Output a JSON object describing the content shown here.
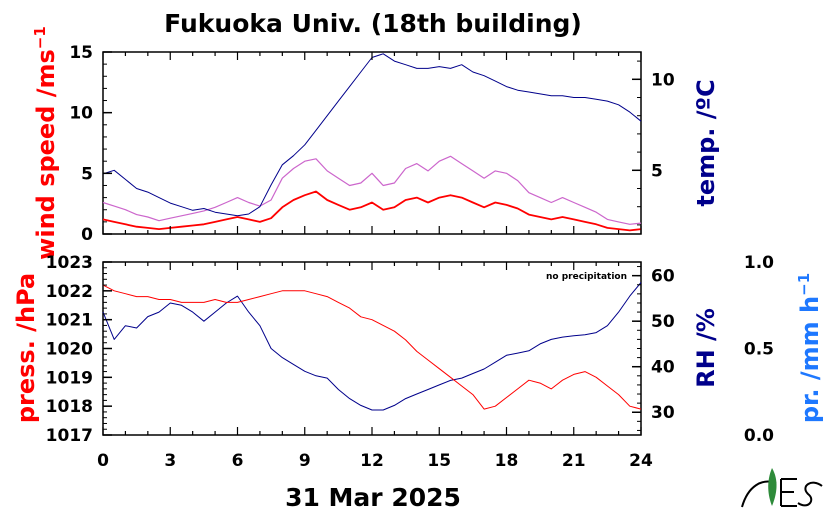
{
  "chart_data": {
    "type": "line",
    "title": "Fukuoka Univ. (18th building)",
    "date": "31 Mar 2025",
    "x_ticks": [
      "0",
      "3",
      "6",
      "9",
      "12",
      "15",
      "18",
      "21",
      "24"
    ],
    "xlim": [
      0,
      24
    ],
    "panels": {
      "upper": {
        "left_axis": {
          "label": "wind speed /ms",
          "label_sup": "−1",
          "color": "#ff0000",
          "ticks": [
            "0",
            "5",
            "10",
            "15"
          ],
          "ylim": [
            0,
            15
          ]
        },
        "right_axis": {
          "label": "temp. /ºC",
          "color": "#00008b",
          "ticks": [
            "5",
            "10"
          ],
          "ylim": [
            1.5,
            11.5
          ]
        },
        "series": [
          {
            "x": [
              0,
              0.5,
              1,
              1.5,
              2,
              2.5,
              3,
              3.5,
              4,
              4.5,
              5,
              5.5,
              6,
              6.5,
              7,
              7.5,
              8,
              8.5,
              9,
              9.5,
              10,
              10.5,
              11,
              11.5,
              12,
              12.5,
              13,
              13.5,
              14,
              14.5,
              15,
              15.5,
              16,
              16.5,
              17,
              17.5,
              18,
              18.5,
              19,
              19.5,
              20,
              20.5,
              21,
              21.5,
              22,
              22.5,
              23,
              23.5,
              24
            ],
            "values": [
              4.8,
              5.0,
              4.5,
              4.0,
              3.8,
              3.5,
              3.2,
              3.0,
              2.8,
              2.9,
              2.7,
              2.6,
              2.5,
              2.6,
              3.0,
              4.2,
              5.3,
              5.8,
              6.4,
              7.2,
              8.0,
              8.8,
              9.6,
              10.4,
              11.2,
              11.4,
              11.0,
              10.8,
              10.6,
              10.6,
              10.7,
              10.6,
              10.8,
              10.4,
              10.2,
              9.9,
              9.6,
              9.4,
              9.3,
              9.2,
              9.1,
              9.1,
              9.0,
              9.0,
              8.9,
              8.8,
              8.6,
              8.2,
              7.7
            ]
          },
          {
            "x": [
              0,
              0.5,
              1,
              1.5,
              2,
              2.5,
              3,
              3.5,
              4,
              4.5,
              5,
              5.5,
              6,
              6.5,
              7,
              7.5,
              8,
              8.5,
              9,
              9.5,
              10,
              10.5,
              11,
              11.5,
              12,
              12.5,
              13,
              13.5,
              14,
              14.5,
              15,
              15.5,
              16,
              16.5,
              17,
              17.5,
              18,
              18.5,
              19,
              19.5,
              20,
              20.5,
              21,
              21.5,
              22,
              22.5,
              23,
              23.5,
              24
            ],
            "values": [
              1.2,
              1.0,
              0.8,
              0.6,
              0.5,
              0.4,
              0.5,
              0.6,
              0.7,
              0.8,
              1.0,
              1.2,
              1.4,
              1.2,
              1.0,
              1.3,
              2.2,
              2.8,
              3.2,
              3.5,
              2.8,
              2.4,
              2.0,
              2.2,
              2.6,
              2.0,
              2.2,
              2.8,
              3.0,
              2.6,
              3.0,
              3.2,
              3.0,
              2.6,
              2.2,
              2.6,
              2.4,
              2.1,
              1.6,
              1.4,
              1.2,
              1.4,
              1.2,
              1.0,
              0.8,
              0.5,
              0.4,
              0.3,
              0.4
            ]
          },
          {
            "x": [
              0,
              0.5,
              1,
              1.5,
              2,
              2.5,
              3,
              3.5,
              4,
              4.5,
              5,
              5.5,
              6,
              6.5,
              7,
              7.5,
              8,
              8.5,
              9,
              9.5,
              10,
              10.5,
              11,
              11.5,
              12,
              12.5,
              13,
              13.5,
              14,
              14.5,
              15,
              15.5,
              16,
              16.5,
              17,
              17.5,
              18,
              18.5,
              19,
              19.5,
              20,
              20.5,
              21,
              21.5,
              22,
              22.5,
              23,
              23.5,
              24
            ],
            "values": [
              2.6,
              2.3,
              2.0,
              1.6,
              1.4,
              1.1,
              1.3,
              1.5,
              1.7,
              1.9,
              2.2,
              2.6,
              3.0,
              2.6,
              2.3,
              2.8,
              4.6,
              5.4,
              6.0,
              6.2,
              5.2,
              4.6,
              4.0,
              4.2,
              5.0,
              4.0,
              4.2,
              5.4,
              5.8,
              5.2,
              6.0,
              6.4,
              5.8,
              5.2,
              4.6,
              5.2,
              5.0,
              4.4,
              3.4,
              3.0,
              2.6,
              3.0,
              2.6,
              2.2,
              1.8,
              1.2,
              1.0,
              0.8,
              0.9
            ]
          }
        ]
      },
      "lower": {
        "left_axis": {
          "label": "press. /hPa",
          "color": "#ff0000",
          "ticks": [
            "1017",
            "1018",
            "1019",
            "1020",
            "1021",
            "1022",
            "1023"
          ],
          "ylim": [
            1017,
            1023
          ]
        },
        "right_axis": {
          "label": "RH /%",
          "color": "#00008b",
          "ticks": [
            "30",
            "40",
            "50",
            "60"
          ],
          "ylim": [
            25,
            63
          ]
        },
        "far_right_axis": {
          "label": "pr. /mm h",
          "label_sup": "−1",
          "color": "#1e78ff",
          "ticks": [
            "0.0",
            "0.5",
            "1.0"
          ],
          "ylim": [
            0,
            1
          ]
        },
        "annotation": "no precipitation",
        "series": [
          {
            "x": [
              0,
              0.5,
              1,
              1.5,
              2,
              2.5,
              3,
              3.5,
              4,
              4.5,
              5,
              5.5,
              6,
              6.5,
              7,
              7.5,
              8,
              8.5,
              9,
              9.5,
              10,
              10.5,
              11,
              11.5,
              12,
              12.5,
              13,
              13.5,
              14,
              14.5,
              15,
              15.5,
              16,
              16.5,
              17,
              17.5,
              18,
              18.5,
              19,
              19.5,
              20,
              20.5,
              21,
              21.5,
              22,
              22.5,
              23,
              23.5,
              24
            ],
            "values": [
              1022.2,
              1022.0,
              1021.9,
              1021.8,
              1021.8,
              1021.7,
              1021.7,
              1021.6,
              1021.6,
              1021.6,
              1021.7,
              1021.6,
              1021.6,
              1021.7,
              1021.8,
              1021.9,
              1022.0,
              1022.0,
              1022.0,
              1021.9,
              1021.8,
              1021.6,
              1021.4,
              1021.1,
              1021.0,
              1020.8,
              1020.6,
              1020.3,
              1019.9,
              1019.6,
              1019.3,
              1019.0,
              1018.7,
              1018.4,
              1017.9,
              1018.0,
              1018.3,
              1018.6,
              1018.9,
              1018.8,
              1018.6,
              1018.9,
              1019.1,
              1019.2,
              1019.0,
              1018.7,
              1018.4,
              1018.0,
              1017.9
            ]
          },
          {
            "x": [
              0,
              0.5,
              1,
              1.5,
              2,
              2.5,
              3,
              3.5,
              4,
              4.5,
              5,
              5.5,
              6,
              6.5,
              7,
              7.5,
              8,
              8.5,
              9,
              9.5,
              10,
              10.5,
              11,
              11.5,
              12,
              12.5,
              13,
              13.5,
              14,
              14.5,
              15,
              15.5,
              16,
              16.5,
              17,
              17.5,
              18,
              18.5,
              19,
              19.5,
              20,
              20.5,
              21,
              21.5,
              22,
              22.5,
              23,
              23.5,
              24
            ],
            "values": [
              52.0,
              46.0,
              49.0,
              48.5,
              51.0,
              52.0,
              54.0,
              53.5,
              52.0,
              50.0,
              52.0,
              54.0,
              55.5,
              52.0,
              49.0,
              44.0,
              42.0,
              40.5,
              39.0,
              38.0,
              37.5,
              35.0,
              33.0,
              31.5,
              30.5,
              30.5,
              31.5,
              33.0,
              34.0,
              35.0,
              36.0,
              37.0,
              37.5,
              38.5,
              39.5,
              41.0,
              42.5,
              43.0,
              43.5,
              45.0,
              46.0,
              46.5,
              46.8,
              47.0,
              47.5,
              49.0,
              52.0,
              55.5,
              58.5
            ]
          }
        ]
      }
    }
  },
  "colors": {
    "wind_avg": "#ff0000",
    "wind_gust": "#cc66cc",
    "temp": "#00008b",
    "press": "#ff0000",
    "rh": "#00008b",
    "precip": "#1e78ff"
  },
  "logo": {
    "text": "NES",
    "icon": "leaf-logo-icon"
  }
}
